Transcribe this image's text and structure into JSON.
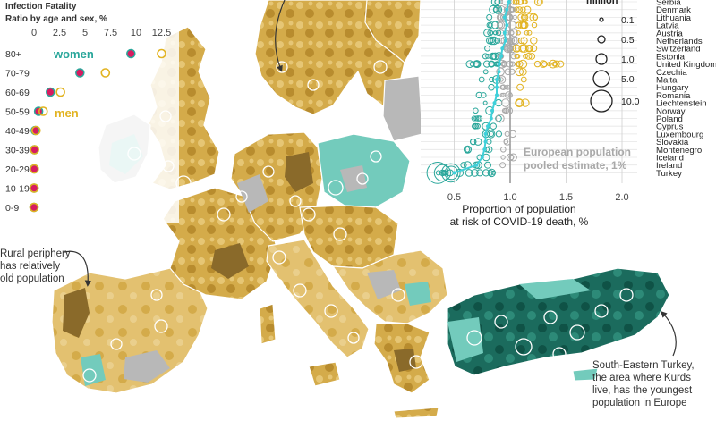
{
  "colors": {
    "sea": "#ffffff",
    "land_old_dark": "#8a6a2a",
    "land_old": "#d4ab4a",
    "land_mid": "#e6c675",
    "land_avg": "#b8b8b8",
    "land_young": "#73cbbc",
    "land_youngest": "#0f5246",
    "women": "#2aa79b",
    "women_fill": "#d81b60",
    "men": "#e2b320",
    "pooled": "#3fd0da"
  },
  "ifr_legend": {
    "title_line1": "Infection Fatality",
    "title_line2": "Ratio by age and sex, %",
    "ticks": [
      "0",
      "2.5",
      "5",
      "7.5",
      "10",
      "12.5"
    ],
    "women_label": "women",
    "men_label": "men",
    "age_groups": [
      "80+",
      "70-79",
      "60-69",
      "50-59",
      "40-49",
      "30-39",
      "20-29",
      "10-19",
      "0-9"
    ]
  },
  "chart_data": {
    "type": "scatter",
    "xlabel_line1": "Proportion of population",
    "xlabel_line2": "at risk of COVID-19 death, %",
    "xticks": [
      "0.5",
      "1.0",
      "1.5",
      "2.0"
    ],
    "xlim": [
      0.2,
      2.2
    ],
    "countries": [
      "Serbia",
      "Denmark",
      "Lithuania",
      "Latvia",
      "Austria",
      "Netherlands",
      "Switzerland",
      "Estonia",
      "United Kingdom",
      "Czechia",
      "Malta",
      "Hungary",
      "Romania",
      "Liechtenstein",
      "Norway",
      "Poland",
      "Cyprus",
      "Luxembourg",
      "Slovakia",
      "Montenegro",
      "Iceland",
      "Ireland",
      "Turkey"
    ],
    "median": [
      0.99,
      0.97,
      0.95,
      0.97,
      0.95,
      0.96,
      0.93,
      0.92,
      0.9,
      0.9,
      0.88,
      0.88,
      0.88,
      0.86,
      0.84,
      0.83,
      0.8,
      0.78,
      0.78,
      0.77,
      0.75,
      0.7,
      0.5
    ],
    "pooled_estimate": 1.0,
    "pooled_label_line1": "European population",
    "pooled_label_line2": "pooled estimate, 1%",
    "size_legend_title": "million",
    "size_legend": [
      "0.1",
      "0.5",
      "1.0",
      "5.0",
      "10.0"
    ]
  },
  "annotations": {
    "rural_line1": "Rural periphery",
    "rural_line2": "has relatively",
    "rural_line3": "old population",
    "turkey_line1": "South-Eastern Turkey,",
    "turkey_line2": "the area where Kurds",
    "turkey_line3": "live, has the youngest",
    "turkey_line4": "population in Europe"
  }
}
